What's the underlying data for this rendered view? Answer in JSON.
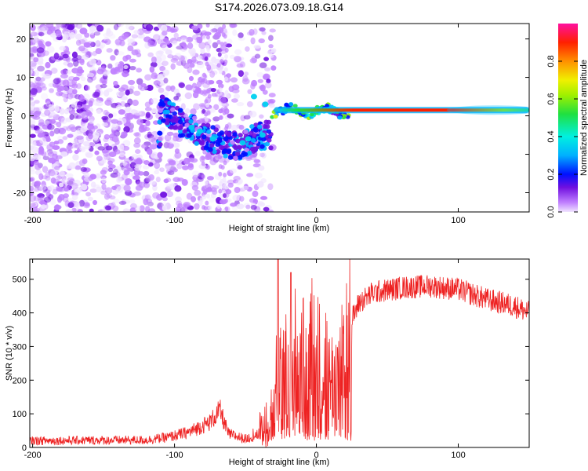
{
  "title": "S174.2026.073.09.18.G14",
  "chart_data": [
    {
      "type": "heatmap",
      "xlabel": "Height of straight line (km)",
      "ylabel": "Frequency (Hz)",
      "xlim": [
        -202,
        150
      ],
      "ylim": [
        -25,
        24
      ],
      "xticks": [
        -200,
        -100,
        0,
        100
      ],
      "yticks": [
        -20,
        -10,
        0,
        10,
        20
      ],
      "colorbar": {
        "label": "Normalized spectral amplitude",
        "range": [
          0,
          1
        ],
        "ticks": [
          "0.0",
          "0.2",
          "0.4",
          "0.6",
          "0.8"
        ],
        "colors": [
          "#f0e4ff",
          "#c080ff",
          "#7010e0",
          "#0010ff",
          "#00b0ff",
          "#00f0e0",
          "#20e040",
          "#a0f000",
          "#f0f000",
          "#ff9000",
          "#ff2000",
          "#ff10a0"
        ]
      },
      "features": {
        "noise_region_km": [
          -202,
          -30
        ],
        "dip_curve": [
          {
            "x": -110,
            "f": 2
          },
          {
            "x": -95,
            "f": -2
          },
          {
            "x": -80,
            "f": -5
          },
          {
            "x": -70,
            "f": -7
          },
          {
            "x": -55,
            "f": -8
          },
          {
            "x": -45,
            "f": -6
          },
          {
            "x": -35,
            "f": -5
          }
        ],
        "stable_band_start_km": -30,
        "stable_band_freq_hz": 1.5
      }
    },
    {
      "type": "line",
      "xlabel": "Height of straight line (km)",
      "ylabel": "SNR (10 * v/v)",
      "xlim": [
        -202,
        150
      ],
      "ylim": [
        0,
        560
      ],
      "xticks": [
        -200,
        -100,
        0,
        100
      ],
      "yticks": [
        0,
        100,
        200,
        300,
        400,
        500
      ],
      "color": "#ee2222",
      "profile": [
        {
          "x": -202,
          "y": 20
        },
        {
          "x": -120,
          "y": 22
        },
        {
          "x": -105,
          "y": 30
        },
        {
          "x": -90,
          "y": 45
        },
        {
          "x": -75,
          "y": 75
        },
        {
          "x": -68,
          "y": 110
        },
        {
          "x": -62,
          "y": 40
        },
        {
          "x": -50,
          "y": 25
        },
        {
          "x": -40,
          "y": 40
        },
        {
          "x": -30,
          "y": 130
        },
        {
          "x": -25,
          "y": 300
        },
        {
          "x": -20,
          "y": 200
        },
        {
          "x": -15,
          "y": 280
        },
        {
          "x": -10,
          "y": 250
        },
        {
          "x": -5,
          "y": 300
        },
        {
          "x": 0,
          "y": 330
        },
        {
          "x": 5,
          "y": 250
        },
        {
          "x": 10,
          "y": 200
        },
        {
          "x": 15,
          "y": 210
        },
        {
          "x": 20,
          "y": 300
        },
        {
          "x": 25,
          "y": 380
        },
        {
          "x": 30,
          "y": 430
        },
        {
          "x": 40,
          "y": 460
        },
        {
          "x": 60,
          "y": 475
        },
        {
          "x": 80,
          "y": 480
        },
        {
          "x": 100,
          "y": 470
        },
        {
          "x": 120,
          "y": 440
        },
        {
          "x": 140,
          "y": 420
        },
        {
          "x": 150,
          "y": 400
        }
      ],
      "peaks": [
        {
          "x": -27,
          "y": 560
        },
        {
          "x": -18,
          "y": 520
        }
      ]
    }
  ]
}
